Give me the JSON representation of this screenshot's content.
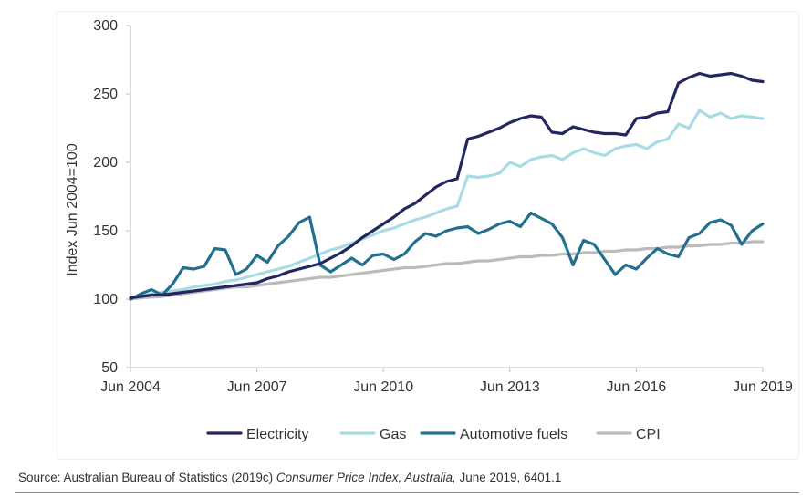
{
  "chart_data": {
    "type": "line",
    "title": "",
    "xlabel": "",
    "ylabel": "Index Jun 2004=100",
    "ylim": [
      50,
      300
    ],
    "yticks": [
      50,
      100,
      150,
      200,
      250,
      300
    ],
    "xlim": [
      2004.5,
      2019.5
    ],
    "xticks": [
      {
        "label": "Jun 2004",
        "value": 2004.5
      },
      {
        "label": "Jun 2007",
        "value": 2007.5
      },
      {
        "label": "Jun 2010",
        "value": 2010.5
      },
      {
        "label": "Jun 2013",
        "value": 2013.5
      },
      {
        "label": "Jun 2016",
        "value": 2016.5
      },
      {
        "label": "Jun 2019",
        "value": 2019.5
      }
    ],
    "grid": false,
    "legend_position": "bottom",
    "series": [
      {
        "name": "Electricity",
        "color": "#24275e",
        "x": [
          2004.5,
          2004.75,
          2005.0,
          2005.25,
          2005.5,
          2005.75,
          2006.0,
          2006.25,
          2006.5,
          2006.75,
          2007.0,
          2007.25,
          2007.5,
          2007.75,
          2008.0,
          2008.25,
          2008.5,
          2008.75,
          2009.0,
          2009.25,
          2009.5,
          2009.75,
          2010.0,
          2010.25,
          2010.5,
          2010.75,
          2011.0,
          2011.25,
          2011.5,
          2011.75,
          2012.0,
          2012.25,
          2012.5,
          2012.75,
          2013.0,
          2013.25,
          2013.5,
          2013.75,
          2014.0,
          2014.25,
          2014.5,
          2014.75,
          2015.0,
          2015.25,
          2015.5,
          2015.75,
          2016.0,
          2016.25,
          2016.5,
          2016.75,
          2017.0,
          2017.25,
          2017.5,
          2017.75,
          2018.0,
          2018.25,
          2018.5,
          2018.75,
          2019.0,
          2019.25,
          2019.5
        ],
        "values": [
          101,
          102,
          103,
          103,
          104,
          105,
          106,
          107,
          108,
          109,
          110,
          111,
          112,
          115,
          117,
          120,
          122,
          124,
          126,
          130,
          134,
          139,
          145,
          150,
          155,
          160,
          166,
          170,
          176,
          182,
          186,
          188,
          217,
          219,
          222,
          225,
          229,
          232,
          234,
          233,
          222,
          221,
          226,
          224,
          222,
          221,
          221,
          220,
          232,
          233,
          236,
          237,
          258,
          262,
          265,
          263,
          264,
          265,
          263,
          260,
          259
        ]
      },
      {
        "name": "Gas",
        "color": "#a8dbe6",
        "x": [
          2004.5,
          2004.75,
          2005.0,
          2005.25,
          2005.5,
          2005.75,
          2006.0,
          2006.25,
          2006.5,
          2006.75,
          2007.0,
          2007.25,
          2007.5,
          2007.75,
          2008.0,
          2008.25,
          2008.5,
          2008.75,
          2009.0,
          2009.25,
          2009.5,
          2009.75,
          2010.0,
          2010.25,
          2010.5,
          2010.75,
          2011.0,
          2011.25,
          2011.5,
          2011.75,
          2012.0,
          2012.25,
          2012.5,
          2012.75,
          2013.0,
          2013.25,
          2013.5,
          2013.75,
          2014.0,
          2014.25,
          2014.5,
          2014.75,
          2015.0,
          2015.25,
          2015.5,
          2015.75,
          2016.0,
          2016.25,
          2016.5,
          2016.75,
          2017.0,
          2017.25,
          2017.5,
          2017.75,
          2018.0,
          2018.25,
          2018.5,
          2018.75,
          2019.0,
          2019.25,
          2019.5
        ],
        "values": [
          101,
          102,
          104,
          105,
          106,
          107,
          109,
          110,
          111,
          113,
          114,
          116,
          118,
          120,
          122,
          124,
          127,
          130,
          133,
          136,
          138,
          141,
          144,
          147,
          150,
          152,
          155,
          158,
          160,
          163,
          166,
          168,
          190,
          189,
          190,
          192,
          200,
          197,
          202,
          204,
          205,
          202,
          207,
          210,
          207,
          205,
          210,
          212,
          213,
          210,
          215,
          217,
          228,
          225,
          238,
          233,
          236,
          232,
          234,
          233,
          232
        ]
      },
      {
        "name": "Automotive fuels",
        "color": "#22708e",
        "x": [
          2004.5,
          2004.75,
          2005.0,
          2005.25,
          2005.5,
          2005.75,
          2006.0,
          2006.25,
          2006.5,
          2006.75,
          2007.0,
          2007.25,
          2007.5,
          2007.75,
          2008.0,
          2008.25,
          2008.5,
          2008.75,
          2009.0,
          2009.25,
          2009.5,
          2009.75,
          2010.0,
          2010.25,
          2010.5,
          2010.75,
          2011.0,
          2011.25,
          2011.5,
          2011.75,
          2012.0,
          2012.25,
          2012.5,
          2012.75,
          2013.0,
          2013.25,
          2013.5,
          2013.75,
          2014.0,
          2014.25,
          2014.5,
          2014.75,
          2015.0,
          2015.25,
          2015.5,
          2015.75,
          2016.0,
          2016.25,
          2016.5,
          2016.75,
          2017.0,
          2017.25,
          2017.5,
          2017.75,
          2018.0,
          2018.25,
          2018.5,
          2018.75,
          2019.0,
          2019.25,
          2019.5
        ],
        "values": [
          100,
          104,
          107,
          103,
          111,
          123,
          122,
          124,
          137,
          136,
          118,
          122,
          132,
          127,
          139,
          146,
          156,
          160,
          125,
          120,
          125,
          130,
          125,
          132,
          133,
          129,
          133,
          142,
          148,
          146,
          150,
          152,
          153,
          148,
          151,
          155,
          157,
          153,
          163,
          159,
          155,
          145,
          125,
          143,
          140,
          129,
          118,
          125,
          122,
          130,
          137,
          133,
          131,
          145,
          148,
          156,
          158,
          154,
          140,
          150,
          155
        ]
      },
      {
        "name": "CPI",
        "color": "#bbbbbb",
        "x": [
          2004.5,
          2004.75,
          2005.0,
          2005.25,
          2005.5,
          2005.75,
          2006.0,
          2006.25,
          2006.5,
          2006.75,
          2007.0,
          2007.25,
          2007.5,
          2007.75,
          2008.0,
          2008.25,
          2008.5,
          2008.75,
          2009.0,
          2009.25,
          2009.5,
          2009.75,
          2010.0,
          2010.25,
          2010.5,
          2010.75,
          2011.0,
          2011.25,
          2011.5,
          2011.75,
          2012.0,
          2012.25,
          2012.5,
          2012.75,
          2013.0,
          2013.25,
          2013.5,
          2013.75,
          2014.0,
          2014.25,
          2014.5,
          2014.75,
          2015.0,
          2015.25,
          2015.5,
          2015.75,
          2016.0,
          2016.25,
          2016.5,
          2016.75,
          2017.0,
          2017.25,
          2017.5,
          2017.75,
          2018.0,
          2018.25,
          2018.5,
          2018.75,
          2019.0,
          2019.25,
          2019.5
        ],
        "values": [
          100,
          101,
          101.5,
          102,
          103,
          104,
          105,
          106,
          107,
          108,
          109,
          109,
          110,
          111,
          112,
          113,
          114,
          115,
          116,
          116,
          117,
          118,
          119,
          120,
          121,
          122,
          123,
          123,
          124,
          125,
          126,
          126,
          127,
          128,
          128,
          129,
          130,
          131,
          131,
          132,
          132,
          133,
          133,
          134,
          134,
          135,
          135,
          136,
          136,
          137,
          137,
          138,
          138,
          139,
          139,
          140,
          140,
          141,
          141,
          142,
          142
        ]
      }
    ]
  },
  "source": {
    "prefix": "Source: Australian Bureau of Statistics (2019c) ",
    "title": "Consumer Price Index, Australia,",
    "suffix": " June 2019, 6401.1"
  }
}
